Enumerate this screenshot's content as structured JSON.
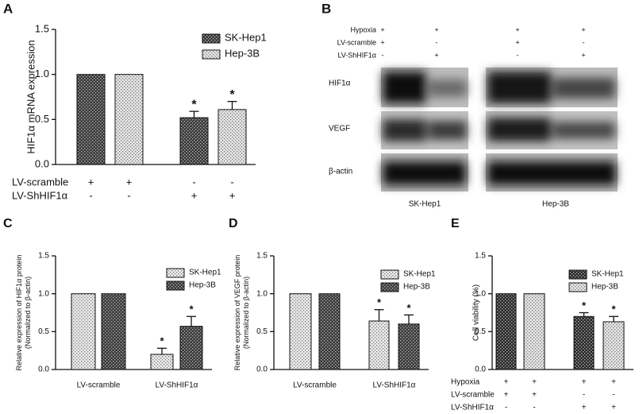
{
  "chart_data": [
    {
      "type": "bar",
      "panel": "A",
      "ylabel": [
        "HIF1α mRNA expression"
      ],
      "categories": [
        null,
        null
      ],
      "series": [
        {
          "name": "SK-Hep1",
          "color": "#3a3a3a",
          "values": [
            1.0,
            0.52
          ],
          "errors": [
            null,
            0.07
          ],
          "significance": [
            null,
            "*"
          ]
        },
        {
          "name": "Hep-3B",
          "color": "#e6e6e6",
          "values": [
            1.0,
            0.61
          ],
          "errors": [
            null,
            0.09
          ],
          "significance": [
            null,
            "*"
          ]
        }
      ],
      "conditions": [
        {
          "label": "LV-scramble",
          "marks": [
            "+",
            "+",
            "-",
            "-"
          ]
        },
        {
          "label": "LV-ShHIF1α",
          "marks": [
            "-",
            "-",
            "+",
            "+"
          ]
        }
      ],
      "ylim": [
        0,
        1.5
      ],
      "yticks": [
        {
          "value": 0,
          "label": "0.0"
        },
        {
          "value": 0.5,
          "label": "0.5"
        },
        {
          "value": 1,
          "label": "1.0"
        },
        {
          "value": 1.5,
          "label": "1.5"
        }
      ]
    },
    {
      "type": "bar",
      "panel": "C",
      "ylabel": [
        "Relative expression of HIF1α protein",
        "(Normalized to β-actin)"
      ],
      "categories": [
        "LV-scramble",
        "LV-ShHIF1α"
      ],
      "series": [
        {
          "name": "SK-Hep1",
          "color": "#ececec",
          "values": [
            1.0,
            0.2
          ],
          "errors": [
            null,
            0.08
          ],
          "significance": [
            null,
            "*"
          ]
        },
        {
          "name": "Hep-3B",
          "color": "#3a3a3a",
          "values": [
            1.0,
            0.57
          ],
          "errors": [
            null,
            0.13
          ],
          "significance": [
            null,
            "*"
          ]
        }
      ],
      "ylim": [
        0,
        1.5
      ],
      "yticks": [
        {
          "value": 0,
          "label": "0.0"
        },
        {
          "value": 0.5,
          "label": "0.5"
        },
        {
          "value": 1,
          "label": "1.0"
        },
        {
          "value": 1.5,
          "label": "1.5"
        }
      ]
    },
    {
      "type": "bar",
      "panel": "D",
      "ylabel": [
        "Relative expression of VEGF protein",
        "(Normalized to β-actin)"
      ],
      "categories": [
        "LV-scramble",
        "LV-ShHIF1α"
      ],
      "series": [
        {
          "name": "SK-Hep1",
          "color": "#ececec",
          "values": [
            1.0,
            0.64
          ],
          "errors": [
            null,
            0.15
          ],
          "significance": [
            null,
            "*"
          ]
        },
        {
          "name": "Hep-3B",
          "color": "#3a3a3a",
          "values": [
            1.0,
            0.6
          ],
          "errors": [
            null,
            0.12
          ],
          "significance": [
            null,
            "*"
          ]
        }
      ],
      "ylim": [
        0,
        1.5
      ],
      "yticks": [
        {
          "value": 0,
          "label": "0.0"
        },
        {
          "value": 0.5,
          "label": "0.5"
        },
        {
          "value": 1,
          "label": "1.0"
        },
        {
          "value": 1.5,
          "label": "1.5"
        }
      ]
    },
    {
      "type": "bar",
      "panel": "E",
      "ylabel": [
        "Cell viability (%)"
      ],
      "categories": [
        null,
        null
      ],
      "series": [
        {
          "name": "SK-Hep1",
          "color": "#2a2a2a",
          "values": [
            1.0,
            0.7
          ],
          "errors": [
            null,
            0.05
          ],
          "significance": [
            null,
            "*"
          ]
        },
        {
          "name": "Hep-3B",
          "color": "#e6e6e6",
          "values": [
            1.0,
            0.63
          ],
          "errors": [
            null,
            0.07
          ],
          "significance": [
            null,
            "*"
          ]
        }
      ],
      "conditions": [
        {
          "label": "Hypoxia",
          "marks": [
            "+",
            "+",
            "+",
            "+"
          ]
        },
        {
          "label": "LV-scramble",
          "marks": [
            "+",
            "+",
            "-",
            "-"
          ]
        },
        {
          "label": "LV-ShHIF1α",
          "marks": [
            "-",
            "-",
            "+",
            "+"
          ]
        }
      ],
      "ylim": [
        0,
        1.5
      ],
      "yticks": [
        {
          "value": 0,
          "label": "0.0"
        },
        {
          "value": 0.5,
          "label": "0.5"
        },
        {
          "value": 1,
          "label": "1.0"
        },
        {
          "value": 1.5,
          "label": "1.5"
        }
      ]
    }
  ],
  "blot": {
    "panel": "B",
    "conditions": [
      {
        "label": "Hypoxia",
        "marks": [
          "+",
          "+",
          "+",
          "+"
        ]
      },
      {
        "label": "LV-scramble",
        "marks": [
          "+",
          "-",
          "+",
          "-"
        ]
      },
      {
        "label": "LV-ShHIF1α",
        "marks": [
          "-",
          "+",
          "-",
          "+"
        ]
      }
    ],
    "rows": [
      "HIF1α",
      "VEGF",
      "β-actin"
    ],
    "cell_lines": [
      "SK-Hep1",
      "Hep-3B"
    ]
  }
}
